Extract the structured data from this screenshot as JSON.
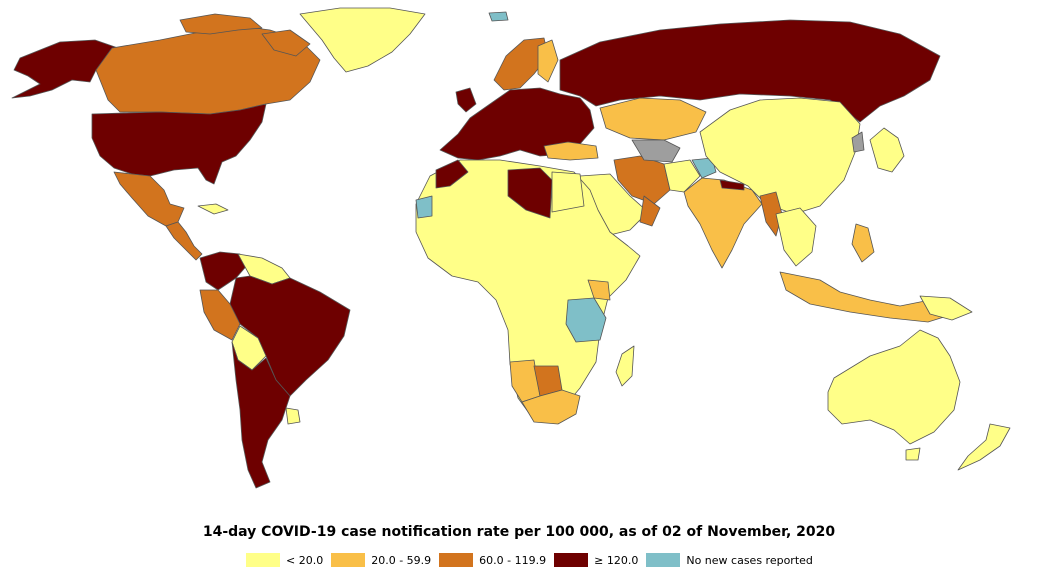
{
  "title": "14-day COVID-19 case notification rate per 100 000, as of 02 of November, 2020",
  "legend": [
    {
      "label": "< 20.0",
      "color": "#ffff88",
      "key": "low"
    },
    {
      "label": "20.0 - 59.9",
      "color": "#f9bf48",
      "key": "mid"
    },
    {
      "label": "60.0 - 119.9",
      "color": "#d2741e",
      "key": "high"
    },
    {
      "label": "≥ 120.0",
      "color": "#6e0000",
      "key": "vhigh"
    },
    {
      "label": "No new cases reported",
      "color": "#7fbfc8",
      "key": "none"
    }
  ],
  "colors": {
    "border": "#555555",
    "no_data": "#9e9e9e"
  }
}
